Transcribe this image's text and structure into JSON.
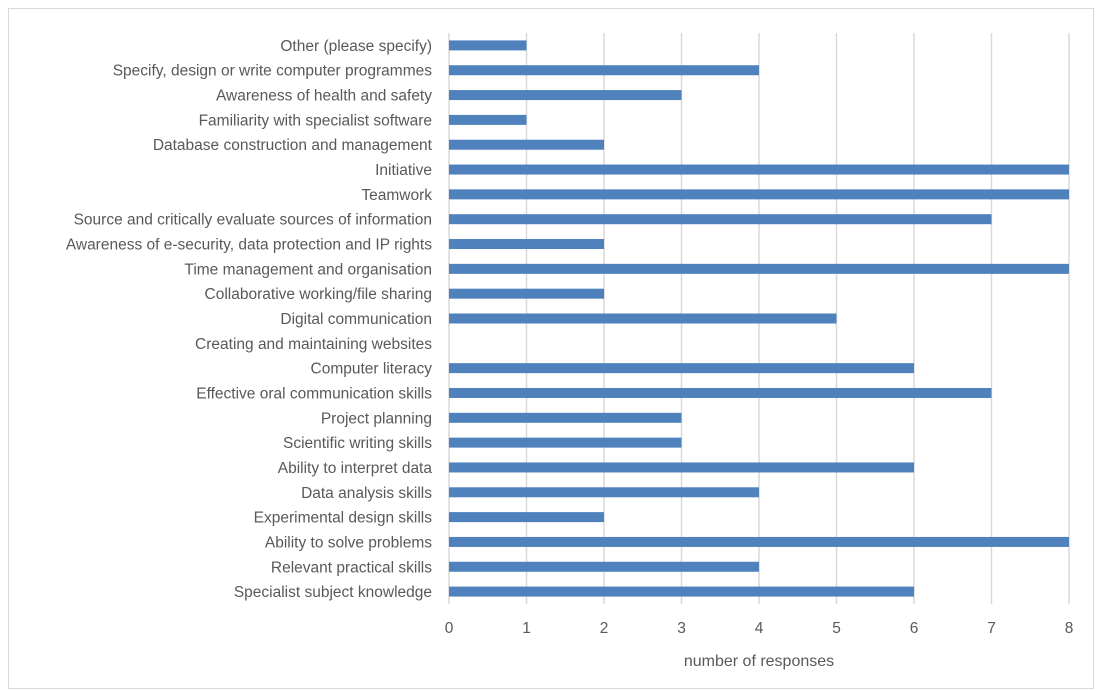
{
  "chart_data": {
    "type": "bar",
    "orientation": "horizontal",
    "categories": [
      "Other (please specify)",
      "Specify, design or write computer programmes",
      "Awareness of health and safety",
      "Familiarity with specialist software",
      "Database construction and management",
      "Initiative",
      "Teamwork",
      "Source and critically evaluate sources of information",
      "Awareness of e-security, data protection and IP rights",
      "Time management and organisation",
      "Collaborative working/file sharing",
      "Digital communication",
      "Creating and maintaining websites",
      "Computer literacy",
      "Effective oral communication skills",
      "Project planning",
      "Scientific writing skills",
      "Ability to interpret data",
      "Data analysis skills",
      "Experimental design skills",
      "Ability to solve problems",
      "Relevant practical skills",
      "Specialist subject knowledge"
    ],
    "values": [
      1,
      4,
      3,
      1,
      2,
      8,
      8,
      7,
      2,
      8,
      2,
      5,
      0,
      6,
      7,
      3,
      3,
      6,
      4,
      2,
      8,
      4,
      6
    ],
    "xlabel": "number of responses",
    "ylabel": "",
    "xlim": [
      0,
      8
    ],
    "xticks": [
      "0",
      "1",
      "2",
      "3",
      "4",
      "5",
      "6",
      "7",
      "8"
    ],
    "grid": true,
    "legend": "none",
    "bar_color": "#4f81bd"
  }
}
